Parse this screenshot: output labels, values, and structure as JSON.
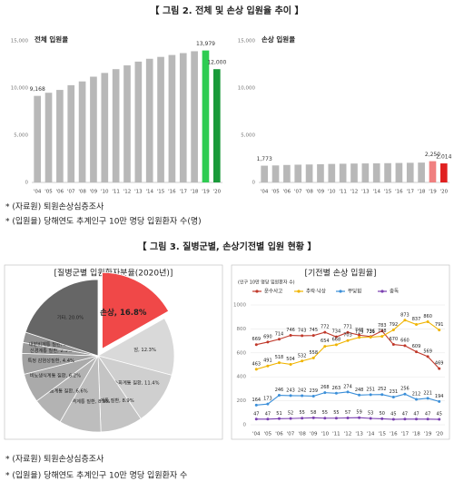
{
  "figure2": {
    "title": "【 그림 2. 전체 및 손상 입원율 추이 】"
  },
  "notes1": [
    "* (자료원) 퇴원손상심층조사",
    "* (입원율) 당해연도 추계인구 10만 명당 입원환자 수(명)"
  ],
  "figure3": {
    "title": "【 그림 3. 질병군별, 손상기전별 입원 현황 】"
  },
  "notes2": [
    "* (자료원) 퇴원손상심층조사",
    "* (입원율) 당해연도 추계인구 10만 명당 입원환자 수"
  ],
  "chart_data": [
    {
      "type": "bar",
      "title": "전체 입원율",
      "categories": [
        "'04",
        "'05",
        "'06",
        "'07",
        "'08",
        "'09",
        "'10",
        "'11",
        "'12",
        "'13",
        "'14",
        "'15",
        "'16",
        "'17",
        "'18",
        "'19",
        "'20"
      ],
      "values": [
        9168,
        9500,
        9800,
        10300,
        10700,
        11200,
        11600,
        12000,
        12400,
        12800,
        13100,
        13300,
        13500,
        13700,
        13900,
        13979,
        12000
      ],
      "value_labels": [
        "9,168",
        null,
        null,
        null,
        null,
        null,
        null,
        null,
        null,
        null,
        null,
        null,
        null,
        null,
        null,
        "13,979",
        "12,000"
      ],
      "colors": [
        "#b8b8b8",
        "#b8b8b8",
        "#b8b8b8",
        "#b8b8b8",
        "#b8b8b8",
        "#b8b8b8",
        "#b8b8b8",
        "#b8b8b8",
        "#b8b8b8",
        "#b8b8b8",
        "#b8b8b8",
        "#b8b8b8",
        "#b8b8b8",
        "#b8b8b8",
        "#b8b8b8",
        "#2ecc52",
        "#1a9a3a"
      ],
      "ylim": [
        0,
        15000
      ],
      "yticks": [
        0,
        {
          "value": 5000,
          "label": "5,000"
        },
        {
          "value": 10000,
          "label": "10,000"
        },
        {
          "value": 15000,
          "label": "15,000"
        }
      ],
      "grid": false
    },
    {
      "type": "bar",
      "title": "손상 입원율",
      "categories": [
        "'04",
        "'05",
        "'06",
        "'07",
        "'08",
        "'09",
        "'10",
        "'11",
        "'12",
        "'13",
        "'14",
        "'15",
        "'16",
        "'17",
        "'18",
        "'19",
        "'20"
      ],
      "values": [
        1773,
        1800,
        1850,
        1880,
        1900,
        1930,
        1960,
        1980,
        2000,
        2010,
        2020,
        2040,
        2060,
        2080,
        2100,
        2250,
        2014
      ],
      "value_labels": [
        "1,773",
        null,
        null,
        null,
        null,
        null,
        null,
        null,
        null,
        null,
        null,
        null,
        null,
        null,
        null,
        "2,250",
        "2,014"
      ],
      "colors": [
        "#b8b8b8",
        "#b8b8b8",
        "#b8b8b8",
        "#b8b8b8",
        "#b8b8b8",
        "#b8b8b8",
        "#b8b8b8",
        "#b8b8b8",
        "#b8b8b8",
        "#b8b8b8",
        "#b8b8b8",
        "#b8b8b8",
        "#b8b8b8",
        "#b8b8b8",
        "#b8b8b8",
        "#f08080",
        "#e02020"
      ],
      "ylim": [
        0,
        15000
      ],
      "yticks": [
        0,
        {
          "value": 5000,
          "label": "5,000"
        },
        {
          "value": 10000,
          "label": "10,000"
        },
        {
          "value": 15000,
          "label": "15,000"
        }
      ],
      "grid": false
    },
    {
      "type": "pie",
      "title": "[질병군별 입원환자분율(2020년)]",
      "values": [
        16.8,
        12.3,
        11.4,
        8.9,
        8.9,
        6.6,
        6.2,
        4.4,
        2.3,
        2.2,
        20.0
      ],
      "value_labels": [
        "손상, 16.8%",
        "암, 12.3%",
        "소화계통 질환, 11.4%",
        "순환계통 질환, 8.9%",
        "근골격계통 질환, 8.9%",
        "호흡계통 질환, 6.6%",
        "비뇨생식계통 질환, 6.2%",
        "특정 감염성질환, 4.4%",
        "신경계통 질환, 2.3%",
        "내분비계통 질환, 2.2%",
        "기타, 20.0%"
      ],
      "colors": [
        "#f04848",
        "#d9d9d9",
        "#cfcfcf",
        "#c4c4c4",
        "#bdbdbd",
        "#b3b3b3",
        "#aaaaaa",
        "#a2a2a2",
        "#9a9a9a",
        "#929292",
        "#666666"
      ],
      "explode": [
        true,
        false,
        false,
        false,
        false,
        false,
        false,
        false,
        false,
        false,
        false
      ]
    },
    {
      "type": "line",
      "title": "[기전별 손상 입원율]",
      "subtitle": "(인구 10만 명당 입원환자 수)",
      "categories": [
        "'04",
        "'05",
        "'06",
        "'07",
        "'08",
        "'09",
        "'10",
        "'11",
        "'12",
        "'13",
        "'14",
        "'15",
        "'16",
        "'17",
        "'18",
        "'19",
        "'20"
      ],
      "series": [
        {
          "name": "운수사고",
          "color": "#c0392b",
          "values": [
            669,
            690,
            714,
            746,
            743,
            745,
            772,
            734,
            771,
            748,
            736,
            783,
            670,
            660,
            609,
            569,
            469
          ]
        },
        {
          "name": "추락·낙상",
          "color": "#f0b400",
          "values": [
            463,
            491,
            518,
            504,
            532,
            558,
            654,
            668,
            703,
            729,
            731,
            738,
            792,
            873,
            837,
            860,
            791
          ]
        },
        {
          "name": "부딪힘",
          "color": "#3b8fd9",
          "values": [
            164,
            173,
            246,
            243,
            242,
            239,
            268,
            263,
            274,
            248,
            251,
            252,
            231,
            256,
            212,
            221,
            194
          ]
        },
        {
          "name": "중독",
          "color": "#7a3fb0",
          "values": [
            47,
            47,
            51,
            52,
            55,
            58,
            55,
            55,
            57,
            59,
            53,
            50,
            45,
            47,
            47,
            47,
            45
          ]
        }
      ],
      "ylim": [
        0,
        1000
      ],
      "yticks": [
        0,
        200,
        400,
        600,
        800,
        1000
      ],
      "grid": true
    }
  ]
}
